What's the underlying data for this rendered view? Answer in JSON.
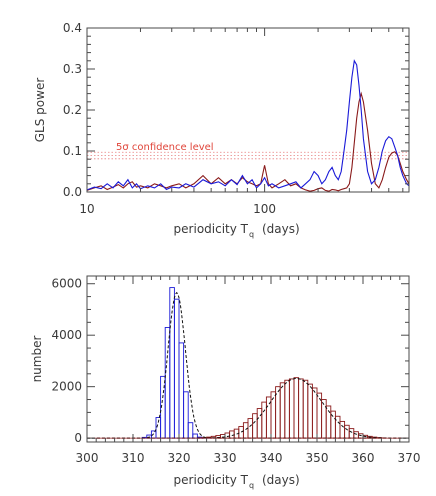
{
  "chart_data": [
    {
      "type": "line",
      "xlabel": "periodicity T",
      "xlabel_sub": "q",
      "xlabel_unit": "(days)",
      "ylabel": "GLS power",
      "xscale": "log",
      "xlim": [
        10,
        650
      ],
      "ylim": [
        0,
        0.4
      ],
      "x_ticks": [
        {
          "value": 10,
          "label": "10"
        },
        {
          "value": 100,
          "label": "100"
        }
      ],
      "y_ticks": [
        {
          "value": 0.0,
          "label": "0.0"
        },
        {
          "value": 0.1,
          "label": "0.1"
        },
        {
          "value": 0.2,
          "label": "0.2"
        },
        {
          "value": 0.3,
          "label": "0.3"
        },
        {
          "value": 0.4,
          "label": "0.4"
        }
      ],
      "annotation": {
        "text": "5σ confidence level",
        "color": "#e0453a"
      },
      "confidence_levels": [
        0.081,
        0.089,
        0.097
      ],
      "colors": {
        "blue": "#1a1ad8",
        "red": "#8a1a1a",
        "confidence": "#e88080"
      },
      "series": [
        {
          "color": "blue",
          "x": [
            10,
            11,
            12,
            13,
            14,
            15,
            16,
            17,
            18,
            19,
            20,
            22,
            24,
            26,
            28,
            30,
            33,
            36,
            40,
            45,
            50,
            55,
            60,
            65,
            70,
            75,
            80,
            85,
            90,
            95,
            100,
            105,
            110,
            120,
            130,
            140,
            150,
            160,
            170,
            180,
            190,
            200,
            210,
            220,
            230,
            240,
            250,
            260,
            270,
            280,
            290,
            300,
            310,
            320,
            330,
            340,
            350,
            360,
            380,
            400,
            420,
            440,
            460,
            480,
            500,
            520,
            540,
            560,
            580,
            600,
            630,
            650
          ],
          "y": [
            0.005,
            0.012,
            0.008,
            0.02,
            0.01,
            0.025,
            0.015,
            0.03,
            0.01,
            0.02,
            0.008,
            0.015,
            0.01,
            0.02,
            0.006,
            0.012,
            0.01,
            0.02,
            0.012,
            0.03,
            0.02,
            0.025,
            0.015,
            0.03,
            0.018,
            0.04,
            0.02,
            0.03,
            0.01,
            0.02,
            0.035,
            0.015,
            0.02,
            0.01,
            0.015,
            0.02,
            0.025,
            0.01,
            0.02,
            0.03,
            0.05,
            0.04,
            0.02,
            0.03,
            0.05,
            0.06,
            0.04,
            0.03,
            0.05,
            0.1,
            0.15,
            0.22,
            0.28,
            0.32,
            0.31,
            0.26,
            0.2,
            0.13,
            0.05,
            0.02,
            0.03,
            0.06,
            0.1,
            0.125,
            0.135,
            0.13,
            0.11,
            0.09,
            0.06,
            0.04,
            0.02,
            0.015
          ]
        },
        {
          "color": "red",
          "x": [
            10,
            11,
            12,
            13,
            14,
            15,
            16,
            17,
            18,
            19,
            20,
            22,
            24,
            26,
            28,
            30,
            33,
            36,
            40,
            45,
            50,
            55,
            60,
            65,
            70,
            75,
            80,
            85,
            90,
            95,
            100,
            105,
            110,
            120,
            130,
            140,
            150,
            160,
            170,
            180,
            190,
            200,
            210,
            220,
            230,
            240,
            250,
            260,
            270,
            280,
            290,
            300,
            310,
            320,
            330,
            340,
            350,
            360,
            380,
            400,
            420,
            440,
            460,
            480,
            500,
            520,
            540,
            560,
            580,
            600,
            630,
            650
          ],
          "y": [
            0.004,
            0.01,
            0.015,
            0.006,
            0.012,
            0.018,
            0.01,
            0.02,
            0.025,
            0.012,
            0.015,
            0.01,
            0.02,
            0.015,
            0.01,
            0.015,
            0.02,
            0.01,
            0.02,
            0.04,
            0.02,
            0.035,
            0.02,
            0.03,
            0.02,
            0.035,
            0.025,
            0.02,
            0.015,
            0.02,
            0.065,
            0.02,
            0.01,
            0.02,
            0.03,
            0.015,
            0.02,
            0.01,
            0.005,
            0.002,
            0.004,
            0.008,
            0.01,
            0.004,
            0.002,
            0.006,
            0.005,
            0.003,
            0.006,
            0.008,
            0.01,
            0.02,
            0.06,
            0.12,
            0.18,
            0.22,
            0.24,
            0.22,
            0.15,
            0.07,
            0.02,
            0.01,
            0.03,
            0.06,
            0.085,
            0.095,
            0.098,
            0.09,
            0.07,
            0.05,
            0.03,
            0.02
          ]
        }
      ]
    },
    {
      "type": "histogram",
      "xlabel": "periodicity T",
      "xlabel_sub": "q",
      "xlabel_unit": "(days)",
      "ylabel": "number",
      "xlim": [
        300,
        370
      ],
      "ylim": [
        -150,
        6300
      ],
      "x_ticks": [
        {
          "value": 300,
          "label": "300"
        },
        {
          "value": 310,
          "label": "310"
        },
        {
          "value": 320,
          "label": "320"
        },
        {
          "value": 330,
          "label": "330"
        },
        {
          "value": 340,
          "label": "340"
        },
        {
          "value": 350,
          "label": "350"
        },
        {
          "value": 360,
          "label": "360"
        },
        {
          "value": 370,
          "label": "370"
        }
      ],
      "y_ticks": [
        {
          "value": 0,
          "label": "0"
        },
        {
          "value": 2000,
          "label": "2000"
        },
        {
          "value": 4000,
          "label": "4000"
        },
        {
          "value": 6000,
          "label": "6000"
        }
      ],
      "colors": {
        "blue": "#1a1ad8",
        "red": "#8a1a1a",
        "fit": "#111111"
      },
      "blue_hist": {
        "bin_width": 1,
        "bin_starts": [
          312,
          313,
          314,
          315,
          316,
          317,
          318,
          319,
          320,
          321,
          322,
          323,
          324,
          325,
          326
        ],
        "counts": [
          30,
          120,
          280,
          800,
          2400,
          4300,
          5850,
          5400,
          3700,
          1800,
          600,
          160,
          40,
          10,
          5
        ]
      },
      "blue_fit": {
        "mu": 319.5,
        "sigma": 1.9,
        "peak": 5650
      },
      "red_hist": {
        "bin_width": 1,
        "bin_starts": [
          324,
          325,
          326,
          327,
          328,
          329,
          330,
          331,
          332,
          333,
          334,
          335,
          336,
          337,
          338,
          339,
          340,
          341,
          342,
          343,
          344,
          345,
          346,
          347,
          348,
          349,
          350,
          351,
          352,
          353,
          354,
          355,
          356,
          357,
          358,
          359,
          360,
          361,
          362,
          363,
          364
        ],
        "counts": [
          10,
          20,
          40,
          70,
          100,
          140,
          200,
          280,
          350,
          450,
          600,
          760,
          950,
          1150,
          1400,
          1600,
          1800,
          2000,
          2150,
          2250,
          2300,
          2350,
          2300,
          2250,
          2100,
          1950,
          1750,
          1500,
          1250,
          1050,
          850,
          650,
          500,
          370,
          250,
          170,
          110,
          70,
          40,
          20,
          10
        ]
      },
      "red_fit": {
        "mu": 345.5,
        "sigma": 5.6,
        "peak": 2320
      }
    }
  ]
}
